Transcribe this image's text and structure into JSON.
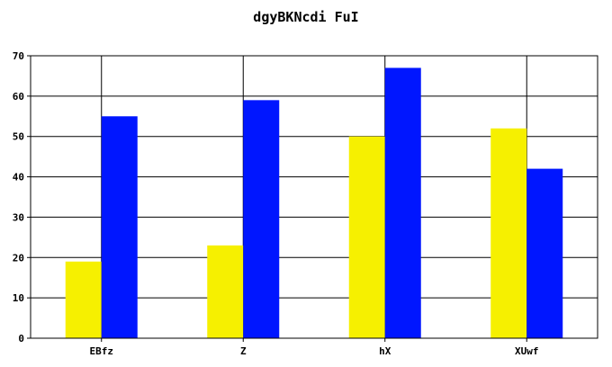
{
  "chart_data": {
    "type": "bar",
    "title": "dgyBKNcdi FuI",
    "xlabel": "",
    "ylabel": "",
    "categories": [
      "EBfz",
      "Z",
      "hX",
      "XUwf"
    ],
    "series": [
      {
        "values": [
          19,
          23,
          50,
          52
        ],
        "color": "#f6f000"
      },
      {
        "values": [
          55,
          59,
          67,
          42
        ],
        "color": "#0016ff"
      }
    ],
    "ylim": [
      0,
      70
    ],
    "yticks": [
      0,
      10,
      20,
      30,
      40,
      50,
      60,
      70
    ],
    "grid": true
  }
}
